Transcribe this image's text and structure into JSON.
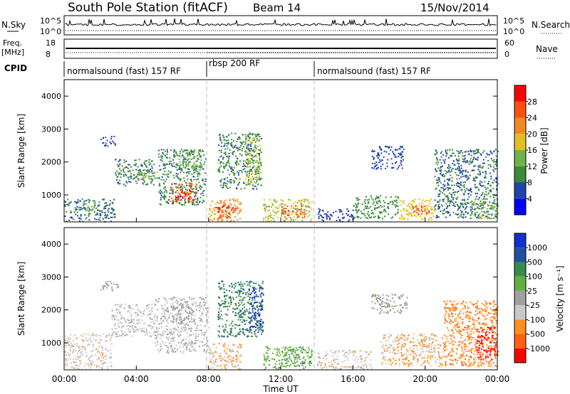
{
  "header": {
    "station": "South Pole Station (fitACF)",
    "beam": "Beam 14",
    "date": "15/Nov/2014"
  },
  "time_axis": {
    "label": "Time UT",
    "ticks": [
      "00:00",
      "04:00",
      "08:00",
      "12:00",
      "16:00",
      "20:00",
      "00:00"
    ]
  },
  "top_panels": {
    "nsky": {
      "label": "N.Sky",
      "tick_top": "10^5",
      "tick_bottom": "10^0"
    },
    "nsearch": {
      "label": "N.Search",
      "tick_top": "10^5",
      "tick_bottom": "10^0"
    },
    "freq": {
      "label_line1": "Freq.",
      "label_line2": "[MHz]",
      "tick_top": "18",
      "tick_bottom": "8"
    },
    "nave": {
      "label": "Nave",
      "tick_top": "60",
      "tick_bottom": "0"
    },
    "cpid": {
      "label": "CPID",
      "segments": [
        {
          "label": "normalsound (fast) 157 RF",
          "start_hour": 0,
          "end_hour": 8
        },
        {
          "label": "rbsp 200 RF",
          "start_hour": 8,
          "end_hour": 14
        },
        {
          "label": "normalsound (fast) 157 RF",
          "start_hour": 14,
          "end_hour": 24
        }
      ]
    }
  },
  "colors": {
    "power": [
      "#0000ff",
      "#2244aa",
      "#3a8a3a",
      "#6fb34a",
      "#e0c020",
      "#f08a20",
      "#ff5010",
      "#ff0000"
    ],
    "velocity": [
      "#ff0000",
      "#ff6010",
      "#ff9020",
      "#c8c8c8",
      "#a0a0a0",
      "#60b040",
      "#3a8a4a",
      "#2050a0",
      "#1030d0"
    ]
  },
  "chart_data": [
    {
      "type": "heatmap",
      "panel": "power",
      "ylabel": "Slant Range [km]",
      "ylim": [
        180,
        4500
      ],
      "yticks": [
        "1000",
        "2000",
        "3000",
        "4000"
      ],
      "xlim": [
        0,
        24
      ],
      "colorbar": {
        "label": "Power [dB]",
        "ticks": [
          "4",
          "8",
          "12",
          "16",
          "20",
          "24",
          "28"
        ],
        "range": [
          0,
          32
        ]
      },
      "regions": [
        {
          "t0": 0.0,
          "t1": 2.8,
          "r0": 200,
          "r1": 900,
          "value": 8
        },
        {
          "t0": 1.0,
          "t1": 1.8,
          "r0": 500,
          "r1": 800,
          "value": 14
        },
        {
          "t0": 2.0,
          "t1": 2.8,
          "r0": 2500,
          "r1": 2800,
          "value": 5
        },
        {
          "t0": 2.8,
          "t1": 5.0,
          "r0": 1300,
          "r1": 2100,
          "value": 9
        },
        {
          "t0": 4.0,
          "t1": 5.2,
          "r0": 1500,
          "r1": 1800,
          "value": 15
        },
        {
          "t0": 5.2,
          "t1": 7.8,
          "r0": 700,
          "r1": 2400,
          "value": 9
        },
        {
          "t0": 5.8,
          "t1": 7.3,
          "r0": 800,
          "r1": 1400,
          "value": 25
        },
        {
          "t0": 6.2,
          "t1": 7.0,
          "r0": 850,
          "r1": 1200,
          "value": 29
        },
        {
          "t0": 6.2,
          "t1": 7.6,
          "r0": 1800,
          "r1": 2400,
          "value": 13
        },
        {
          "t0": 8.0,
          "t1": 9.8,
          "r0": 200,
          "r1": 900,
          "value": 21
        },
        {
          "t0": 8.3,
          "t1": 9.6,
          "r0": 300,
          "r1": 700,
          "value": 27
        },
        {
          "t0": 8.5,
          "t1": 10.9,
          "r0": 1200,
          "r1": 2900,
          "value": 9
        },
        {
          "t0": 10.0,
          "t1": 10.9,
          "r0": 1300,
          "r1": 2800,
          "value": 16
        },
        {
          "t0": 11.0,
          "t1": 13.7,
          "r0": 200,
          "r1": 900,
          "value": 16
        },
        {
          "t0": 12.0,
          "t1": 13.3,
          "r0": 300,
          "r1": 700,
          "value": 26
        },
        {
          "t0": 14.0,
          "t1": 16.0,
          "r0": 200,
          "r1": 600,
          "value": 6
        },
        {
          "t0": 16.0,
          "t1": 18.5,
          "r0": 300,
          "r1": 1000,
          "value": 10
        },
        {
          "t0": 17.0,
          "t1": 18.8,
          "r0": 1800,
          "r1": 2500,
          "value": 6
        },
        {
          "t0": 18.5,
          "t1": 20.5,
          "r0": 250,
          "r1": 900,
          "value": 18
        },
        {
          "t0": 19.2,
          "t1": 20.2,
          "r0": 400,
          "r1": 700,
          "value": 26
        },
        {
          "t0": 20.5,
          "t1": 24.0,
          "r0": 300,
          "r1": 2400,
          "value": 8
        },
        {
          "t0": 22.5,
          "t1": 24.0,
          "r0": 300,
          "r1": 900,
          "value": 15
        }
      ]
    },
    {
      "type": "heatmap",
      "panel": "velocity",
      "ylabel": "Slant Range [km]",
      "ylim": [
        180,
        4500
      ],
      "yticks": [
        "1000",
        "2000",
        "3000",
        "4000"
      ],
      "xlim": [
        0,
        24
      ],
      "colorbar": {
        "label": "Velocity [m s⁻¹]",
        "ticks": [
          "-1000",
          "-500",
          "-100",
          "-25",
          "25",
          "100",
          "500",
          "1000"
        ],
        "range": [
          -1200,
          1200
        ]
      },
      "regions": [
        {
          "t0": 0.0,
          "t1": 2.6,
          "r0": 200,
          "r1": 1300,
          "value": -300
        },
        {
          "t0": 2.0,
          "t1": 3.0,
          "r0": 2600,
          "r1": 2900,
          "value": 20
        },
        {
          "t0": 2.6,
          "t1": 5.0,
          "r0": 1200,
          "r1": 2200,
          "value": -200
        },
        {
          "t0": 5.0,
          "t1": 8.0,
          "r0": 700,
          "r1": 2400,
          "value": -150
        },
        {
          "t0": 6.0,
          "t1": 7.2,
          "r0": 1600,
          "r1": 2200,
          "value": 10
        },
        {
          "t0": 8.0,
          "t1": 9.8,
          "r0": 200,
          "r1": 1000,
          "value": -400
        },
        {
          "t0": 8.5,
          "t1": 11.0,
          "r0": 1200,
          "r1": 2900,
          "value": 600
        },
        {
          "t0": 10.2,
          "t1": 11.0,
          "r0": 1400,
          "r1": 2700,
          "value": 900
        },
        {
          "t0": 11.0,
          "t1": 13.7,
          "r0": 200,
          "r1": 900,
          "value": 300
        },
        {
          "t0": 12.0,
          "t1": 13.2,
          "r0": 300,
          "r1": 800,
          "value": 200
        },
        {
          "t0": 14.0,
          "t1": 17.0,
          "r0": 200,
          "r1": 800,
          "value": -300
        },
        {
          "t0": 17.0,
          "t1": 19.0,
          "r0": 1900,
          "r1": 2500,
          "value": 20
        },
        {
          "t0": 17.5,
          "t1": 21.0,
          "r0": 300,
          "r1": 1300,
          "value": -400
        },
        {
          "t0": 21.0,
          "t1": 24.0,
          "r0": 300,
          "r1": 2300,
          "value": -600
        },
        {
          "t0": 22.8,
          "t1": 24.0,
          "r0": 500,
          "r1": 1500,
          "value": -1000
        }
      ]
    }
  ]
}
